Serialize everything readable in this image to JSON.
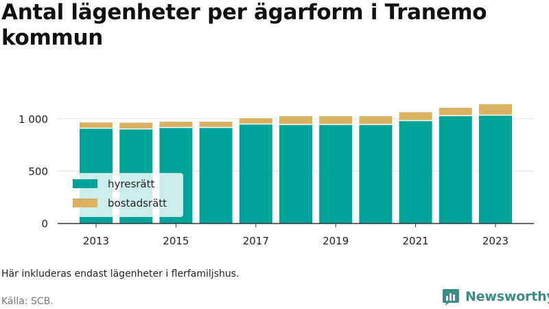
{
  "title": "Antal lägenheter per ägarform i Tranemo kommun",
  "note": "Här inkluderas endast lägenheter i flerfamiljshus.",
  "source": "Källa: SCB.",
  "brand": {
    "name": "Newsworthy",
    "icon": "bar-chart-logo-icon",
    "color": "#3c8c86"
  },
  "colors": {
    "hyresratt": "#00a398",
    "bostadsratt": "#d9b361",
    "grid": "#dddddd",
    "axis": "#333333"
  },
  "chart_data": {
    "type": "bar",
    "stacked": true,
    "categories": [
      "2013",
      "2014",
      "2015",
      "2016",
      "2017",
      "2018",
      "2019",
      "2020",
      "2021",
      "2022",
      "2023"
    ],
    "x_tick_labels": [
      "2013",
      "2015",
      "2017",
      "2019",
      "2021",
      "2023"
    ],
    "series": [
      {
        "name": "hyresrätt",
        "values": [
          905,
          898,
          912,
          912,
          945,
          940,
          940,
          940,
          978,
          1025,
          1030
        ]
      },
      {
        "name": "bostadsrätt",
        "values": [
          60,
          65,
          60,
          60,
          60,
          85,
          85,
          85,
          85,
          80,
          110
        ]
      }
    ],
    "y_ticks": [
      0,
      500,
      1000
    ],
    "y_tick_labels": [
      "0",
      "500",
      "1 000"
    ],
    "ylim": [
      0,
      1100
    ],
    "grid": true,
    "legend": "bottom-left"
  }
}
